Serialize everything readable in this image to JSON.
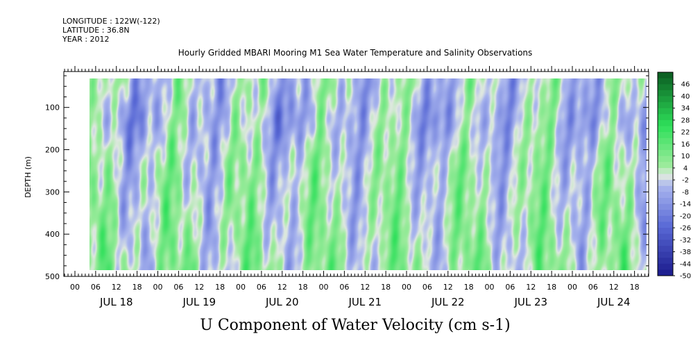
{
  "header": {
    "longitude": "LONGITUDE : 122W(-122)",
    "latitude": "LATITUDE : 36.8N",
    "year": "YEAR : 2012"
  },
  "chart_data": {
    "type": "heatmap",
    "title": "Hourly Gridded MBARI Mooring M1 Sea Water Temperature and Salinity Observations",
    "xlabel": "U Component of Water Velocity (cm s-1)",
    "ylabel": "DEPTH (m)",
    "y_inverted": true,
    "ylim": [
      500,
      15
    ],
    "y_ticks": [
      "100",
      "200",
      "300",
      "400",
      "500"
    ],
    "x_hour_ticks": [
      "00",
      "06",
      "12",
      "18",
      "00",
      "06",
      "12",
      "18",
      "00",
      "06",
      "12",
      "18",
      "00",
      "06",
      "12",
      "18",
      "00",
      "06",
      "12",
      "18",
      "00",
      "06",
      "12",
      "18",
      "00",
      "06",
      "12",
      "18"
    ],
    "day_labels": [
      "JUL 18",
      "JUL 19",
      "JUL 20",
      "JUL 21",
      "JUL 22",
      "JUL 23",
      "JUL 24"
    ],
    "colorbar": {
      "labels": [
        "46",
        "40",
        "34",
        "28",
        "22",
        "16",
        "10",
        "4",
        "-2",
        "-8",
        "-14",
        "-20",
        "-26",
        "-32",
        "-38",
        "-44",
        "-50"
      ],
      "range": [
        -50,
        52
      ],
      "step": 3
    },
    "colors": {
      "neg_strong": "#1a1a8c",
      "neg_mid": "#5a6ad6",
      "neg_light": "#aab6ee",
      "zero": "#dfe8e0",
      "pos_light": "#9deb9d",
      "pos_mid": "#2ee05a",
      "pos_strong": "#0a5a20"
    }
  }
}
